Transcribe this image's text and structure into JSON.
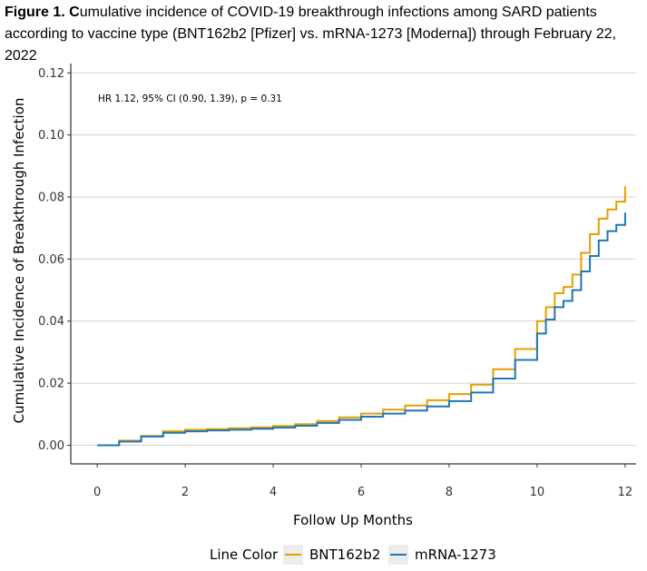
{
  "caption": {
    "label": "Figure 1. C",
    "text": "umulative incidence of COVID-19 breakthrough infections among SARD patients according to vaccine type (BNT162b2 [Pfizer] vs. mRNA-1273 [Moderna]) through February 22, 2022"
  },
  "chart_data": {
    "type": "line",
    "title": "",
    "xlabel": "Follow Up Months",
    "ylabel": "Cumulative Incidence of Breakthrough Infection",
    "xlim": [
      -0.6,
      12.25
    ],
    "ylim": [
      -0.006,
      0.123
    ],
    "x_ticks": [
      0,
      2,
      4,
      6,
      8,
      10,
      12
    ],
    "x_tick_labels": [
      "0",
      "2",
      "4",
      "6",
      "8",
      "10",
      "12"
    ],
    "y_ticks": [
      0.0,
      0.02,
      0.04,
      0.06,
      0.08,
      0.1,
      0.12
    ],
    "y_tick_labels": [
      "0.00",
      "0.02",
      "0.04",
      "0.06",
      "0.08",
      "0.10",
      "0.12"
    ],
    "grid": "horizontal",
    "annotation": "HR 1.12, 95% CI (0.90, 1.39), p = 0.31",
    "legend": {
      "title": "Line Color",
      "position": "bottom"
    },
    "series": [
      {
        "name": "BNT162b2",
        "color": "#E69F00",
        "x": [
          0,
          0.5,
          1.0,
          1.5,
          2.0,
          2.5,
          3.0,
          3.5,
          4.0,
          4.5,
          5.0,
          5.5,
          6.0,
          6.5,
          7.0,
          7.5,
          8.0,
          8.5,
          9.0,
          9.5,
          10.0,
          10.2,
          10.4,
          10.6,
          10.8,
          11.0,
          11.2,
          11.4,
          11.6,
          11.8,
          12.0
        ],
        "y": [
          0,
          0.0015,
          0.003,
          0.0045,
          0.005,
          0.0052,
          0.0055,
          0.0058,
          0.0062,
          0.0068,
          0.0078,
          0.009,
          0.0102,
          0.0115,
          0.0128,
          0.0145,
          0.0165,
          0.0195,
          0.0245,
          0.031,
          0.04,
          0.0445,
          0.049,
          0.051,
          0.055,
          0.062,
          0.068,
          0.073,
          0.076,
          0.0785,
          0.0835
        ]
      },
      {
        "name": "mRNA-1273",
        "color": "#1F77B4",
        "x": [
          0,
          0.5,
          1.0,
          1.5,
          2.0,
          2.5,
          3.0,
          3.5,
          4.0,
          4.5,
          5.0,
          5.5,
          6.0,
          6.5,
          7.0,
          7.5,
          8.0,
          8.5,
          9.0,
          9.5,
          10.0,
          10.2,
          10.4,
          10.6,
          10.8,
          11.0,
          11.2,
          11.4,
          11.6,
          11.8,
          12.0
        ],
        "y": [
          0,
          0.0012,
          0.0028,
          0.004,
          0.0045,
          0.0048,
          0.005,
          0.0053,
          0.0057,
          0.0063,
          0.0072,
          0.0082,
          0.0092,
          0.0102,
          0.0112,
          0.0125,
          0.0142,
          0.017,
          0.0215,
          0.0275,
          0.036,
          0.0405,
          0.0445,
          0.0465,
          0.05,
          0.056,
          0.061,
          0.066,
          0.069,
          0.071,
          0.075
        ]
      }
    ]
  }
}
